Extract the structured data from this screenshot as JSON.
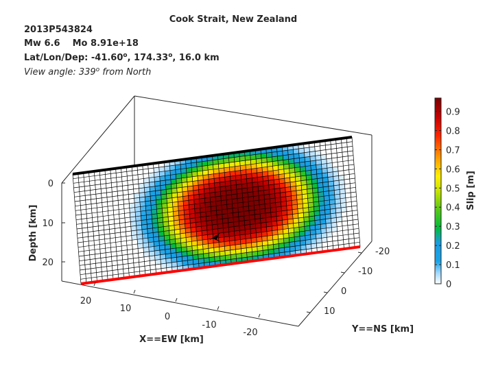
{
  "header": {
    "title": "Cook Strait, New Zealand",
    "event_id": "2013P543824",
    "magnitude": "Mw 6.6",
    "moment": "Mo 8.91e+18",
    "location_label": "Lat/Lon/Dep: ",
    "lat": "-41.60",
    "lon": "174.33",
    "depth": "16.0 km",
    "degree_symbol": "o",
    "sep": ", ",
    "view_prefix": "View angle: 339",
    "view_suffix": " from North"
  },
  "chart_data": {
    "type": "heatmap",
    "title": "Cook Strait, New Zealand",
    "x_axis": {
      "label": "X==EW [km]",
      "ticks": [
        "20",
        "10",
        "0",
        "-10",
        "-20"
      ]
    },
    "y_axis": {
      "label": "Y==NS [km]",
      "ticks": [
        "-20",
        "-10",
        "0",
        "10"
      ]
    },
    "z_axis": {
      "label": "Depth [km]",
      "ticks": [
        "0",
        "10",
        "20"
      ]
    },
    "colorbar": {
      "label": "Slip [m]",
      "range": [
        0,
        0.97
      ],
      "ticks": [
        "0",
        "0.1",
        "0.2",
        "0.3",
        "0.4",
        "0.5",
        "0.6",
        "0.7",
        "0.8",
        "0.9"
      ],
      "colormap": "jet-white"
    },
    "fault_grid": {
      "columns": 52,
      "rows": 24
    },
    "slip_peak": {
      "value_m": 0.97,
      "along_strike_fraction": 0.575,
      "down_dip_fraction": 0.5,
      "along_strike_radius_fraction": 0.27,
      "down_dip_radius_fraction": 0.44
    },
    "grid": true,
    "fault_top_color": "#000000",
    "fault_bottom_color": "#ff0000",
    "hypocenter_marker": "star"
  }
}
